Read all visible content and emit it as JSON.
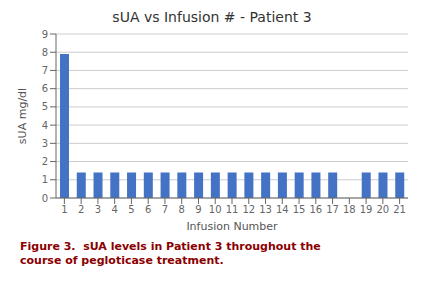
{
  "chart_data": {
    "type": "bar",
    "title": "sUA vs Infusion # - Patient 3",
    "xlabel": "Infusion Number",
    "ylabel": "sUA mg/dl",
    "categories": [
      "1",
      "2",
      "3",
      "4",
      "5",
      "6",
      "7",
      "8",
      "9",
      "10",
      "11",
      "12",
      "13",
      "14",
      "15",
      "16",
      "17",
      "18",
      "19",
      "20",
      "21"
    ],
    "values": [
      7.9,
      1.4,
      1.4,
      1.4,
      1.4,
      1.4,
      1.4,
      1.4,
      1.4,
      1.4,
      1.4,
      1.4,
      1.4,
      1.4,
      1.4,
      1.4,
      1.4,
      0,
      1.4,
      1.4,
      1.4
    ],
    "color": "#4472C4",
    "ylim": [
      0,
      9
    ],
    "yticks": [
      0,
      1,
      2,
      3,
      4,
      5,
      6,
      7,
      8,
      9
    ],
    "grid": true,
    "annotations": [
      "Figure 3.  sUA levels in Patient 3 throughout the",
      "course of pegloticase treatment."
    ]
  }
}
